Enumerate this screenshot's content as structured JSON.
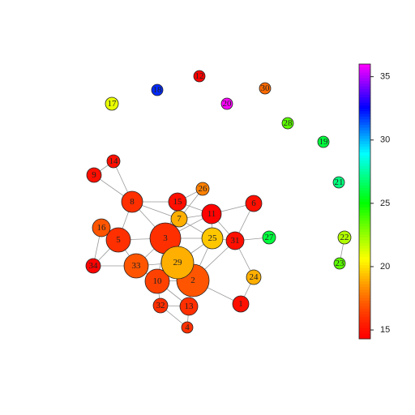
{
  "chart_data": {
    "type": "network",
    "nodes": [
      {
        "label": "1",
        "value": 15
      },
      {
        "label": "2",
        "value": 17
      },
      {
        "label": "3",
        "value": 16
      },
      {
        "label": "4",
        "value": 16
      },
      {
        "label": "5",
        "value": 16
      },
      {
        "label": "6",
        "value": 15
      },
      {
        "label": "7",
        "value": 19
      },
      {
        "label": "8",
        "value": 16
      },
      {
        "label": "9",
        "value": 15
      },
      {
        "label": "10",
        "value": 16.5
      },
      {
        "label": "11",
        "value": 14.5
      },
      {
        "label": "12",
        "value": 14.5
      },
      {
        "label": "13",
        "value": 16
      },
      {
        "label": "14",
        "value": 15
      },
      {
        "label": "15",
        "value": 15
      },
      {
        "label": "16",
        "value": 17
      },
      {
        "label": "17",
        "value": 21
      },
      {
        "label": "18",
        "value": 32
      },
      {
        "label": "19",
        "value": 26
      },
      {
        "label": "20",
        "value": 36
      },
      {
        "label": "21",
        "value": 27
      },
      {
        "label": "22",
        "value": 22
      },
      {
        "label": "23",
        "value": 23.5
      },
      {
        "label": "24",
        "value": 19
      },
      {
        "label": "25",
        "value": 19.5
      },
      {
        "label": "26",
        "value": 18
      },
      {
        "label": "27",
        "value": 26
      },
      {
        "label": "28",
        "value": 23.5
      },
      {
        "label": "29",
        "value": 19
      },
      {
        "label": "30",
        "value": 17.5
      },
      {
        "label": "31",
        "value": 15
      },
      {
        "label": "32",
        "value": 16
      },
      {
        "label": "33",
        "value": 17
      },
      {
        "label": "34",
        "value": 14.5
      }
    ],
    "edges": [
      [
        13,
        8
      ],
      [
        13,
        7
      ],
      [
        8,
        7
      ],
      [
        7,
        4
      ],
      [
        7,
        14
      ],
      [
        7,
        2
      ],
      [
        7,
        6
      ],
      [
        14,
        6
      ],
      [
        14,
        25
      ],
      [
        14,
        10
      ],
      [
        14,
        2
      ],
      [
        6,
        10
      ],
      [
        6,
        2
      ],
      [
        6,
        24
      ],
      [
        10,
        24
      ],
      [
        10,
        5
      ],
      [
        10,
        30
      ],
      [
        10,
        2
      ],
      [
        25,
        6
      ],
      [
        5,
        30
      ],
      [
        30,
        26
      ],
      [
        30,
        23
      ],
      [
        30,
        24
      ],
      [
        30,
        1
      ],
      [
        24,
        2
      ],
      [
        24,
        28
      ],
      [
        24,
        1
      ],
      [
        4,
        15
      ],
      [
        4,
        2
      ],
      [
        4,
        32
      ],
      [
        4,
        33
      ],
      [
        33,
        32
      ],
      [
        15,
        33
      ],
      [
        2,
        28
      ],
      [
        2,
        32
      ],
      [
        2,
        9
      ],
      [
        28,
        32
      ],
      [
        28,
        9
      ],
      [
        28,
        1
      ],
      [
        32,
        9
      ],
      [
        9,
        1
      ],
      [
        9,
        12
      ],
      [
        9,
        31
      ],
      [
        1,
        12
      ],
      [
        1,
        0
      ],
      [
        23,
        0
      ],
      [
        31,
        12
      ],
      [
        31,
        3
      ],
      [
        12,
        3
      ],
      [
        21,
        22
      ]
    ],
    "ylim": [
      14.3,
      36
    ],
    "yticks": [
      15,
      20,
      25,
      30,
      35
    ]
  }
}
